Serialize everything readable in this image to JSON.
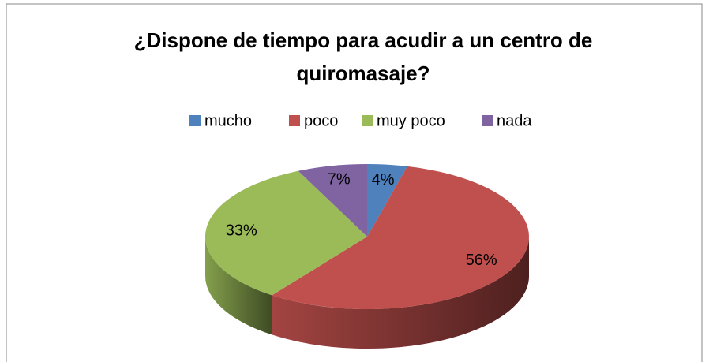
{
  "chart_data": {
    "type": "pie",
    "title": "¿Dispone de tiempo para acudir a un centro de quiromasaje?",
    "categories": [
      "mucho",
      "poco",
      "muy poco",
      "nada"
    ],
    "values": [
      4,
      56,
      33,
      7
    ],
    "value_labels": [
      "4%",
      "56%",
      "33%",
      "7%"
    ],
    "colors": [
      "#4f81bd",
      "#c0504d",
      "#9bbb59",
      "#8064a2"
    ],
    "legend": "top"
  }
}
